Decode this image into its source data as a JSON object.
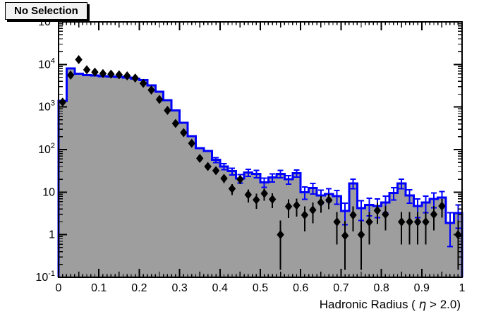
{
  "title_box": {
    "label": "No Selection"
  },
  "chart_data": {
    "type": "histogram",
    "title": "No Selection",
    "xlabel": "Hadronic Radius ( η > 2.0)",
    "xlabel_parts": {
      "pre": "Hadronic Radius ( ",
      "eta": "η",
      "post": " > 2.0)"
    },
    "ylabel": "",
    "x_range": [
      0,
      1
    ],
    "y_range": [
      0.1,
      100000
    ],
    "y_scale": "log",
    "grid": false,
    "bin_width": 0.02,
    "x_tick_labels": [
      "0",
      "0.1",
      "0.2",
      "0.3",
      "0.4",
      "0.5",
      "0.6",
      "0.7",
      "0.8",
      "0.9",
      "1"
    ],
    "y_tick_labels": [
      {
        "t": "10",
        "s": "-1"
      },
      {
        "t": "1"
      },
      {
        "t": "10"
      },
      {
        "t": "10",
        "s": "2"
      },
      {
        "t": "10",
        "s": "3"
      },
      {
        "t": "10",
        "s": "4"
      },
      {
        "t": "10",
        "s": "5"
      }
    ],
    "series": [
      {
        "name": "filled-histogram",
        "style": "filled-steps",
        "line_color": "#0000ff",
        "fill_color": "#9e9e9e",
        "bin_centers": [
          0.01,
          0.03,
          0.05,
          0.07,
          0.09,
          0.11,
          0.13,
          0.15,
          0.17,
          0.19,
          0.21,
          0.23,
          0.25,
          0.27,
          0.29,
          0.31,
          0.33,
          0.35,
          0.37,
          0.39,
          0.41,
          0.43,
          0.45,
          0.47,
          0.49,
          0.51,
          0.53,
          0.55,
          0.57,
          0.59,
          0.61,
          0.63,
          0.65,
          0.67,
          0.69,
          0.71,
          0.73,
          0.75,
          0.77,
          0.79,
          0.81,
          0.83,
          0.85,
          0.87,
          0.89,
          0.91,
          0.93,
          0.95,
          0.97,
          0.99
        ],
        "values": [
          1400,
          8100,
          6000,
          5600,
          5450,
          5300,
          5200,
          5100,
          4950,
          4600,
          4300,
          3250,
          2300,
          1450,
          830,
          430,
          205,
          108,
          92,
          57,
          40,
          31,
          21,
          29,
          27,
          17,
          22,
          27,
          20,
          28,
          10,
          12.5,
          8.3,
          9,
          8,
          3.6,
          16,
          4.2,
          5,
          4.7,
          5.7,
          9.6,
          16,
          8.4,
          4.7,
          5.7,
          6.9,
          7.5,
          1.9,
          3.2
        ]
      },
      {
        "name": "data-points",
        "style": "markers",
        "marker": "filled-diamond",
        "color": "#000000",
        "x": [
          0.01,
          0.03,
          0.05,
          0.07,
          0.09,
          0.11,
          0.13,
          0.15,
          0.17,
          0.19,
          0.21,
          0.23,
          0.25,
          0.27,
          0.29,
          0.31,
          0.33,
          0.35,
          0.37,
          0.39,
          0.41,
          0.43,
          0.45,
          0.47,
          0.49,
          0.51,
          0.53,
          0.55,
          0.57,
          0.59,
          0.61,
          0.63,
          0.65,
          0.67,
          0.69,
          0.71,
          0.73,
          0.75,
          0.77,
          0.79,
          0.81,
          0.85,
          0.87,
          0.89,
          0.91,
          0.93,
          0.95,
          0.99
        ],
        "y": [
          1300,
          5600,
          13000,
          7500,
          6600,
          6100,
          5900,
          5700,
          5400,
          4800,
          3600,
          2500,
          1500,
          830,
          410,
          250,
          140,
          62,
          40,
          32,
          21,
          12,
          20,
          8.7,
          6.6,
          9.3,
          6.8,
          1.0,
          4.6,
          4.9,
          2.9,
          3.8,
          5.7,
          6.5,
          2.0,
          0.95,
          2.9,
          1.0,
          2.0,
          3.7,
          3.0,
          2.0,
          2.0,
          2.0,
          2.0,
          3.0,
          4.7,
          1.0
        ]
      }
    ],
    "colors": {
      "frame": "#000000",
      "background": "#ffffff",
      "text": "#000000"
    }
  }
}
